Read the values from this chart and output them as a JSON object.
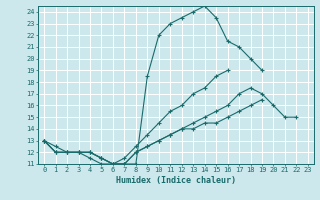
{
  "xlabel": "Humidex (Indice chaleur)",
  "xlim": [
    -0.5,
    23.5
  ],
  "ylim": [
    11,
    24.5
  ],
  "xticks": [
    0,
    1,
    2,
    3,
    4,
    5,
    6,
    7,
    8,
    9,
    10,
    11,
    12,
    13,
    14,
    15,
    16,
    17,
    18,
    19,
    20,
    21,
    22,
    23
  ],
  "yticks": [
    11,
    12,
    13,
    14,
    15,
    16,
    17,
    18,
    19,
    20,
    21,
    22,
    23,
    24
  ],
  "background_color": "#cce8ec",
  "grid_color": "#ffffff",
  "line_color": "#1a6b6b",
  "curve_main": {
    "x": [
      0,
      1,
      2,
      3,
      4,
      5,
      6,
      7,
      8,
      9,
      10,
      11,
      12,
      13,
      14,
      15,
      16,
      17,
      18,
      19
    ],
    "y": [
      13,
      12,
      12,
      12,
      11.5,
      11,
      11,
      11,
      11,
      18.5,
      22,
      23,
      23.5,
      24,
      24.5,
      23.5,
      21.5,
      21,
      20,
      19
    ]
  },
  "curve_line1": {
    "x": [
      0,
      1,
      2,
      3,
      4,
      5,
      6,
      7,
      8,
      9,
      10,
      11,
      12,
      13,
      14,
      15,
      16,
      17,
      18,
      19,
      20,
      21,
      22,
      23
    ],
    "y": [
      13,
      12.5,
      12,
      12,
      12,
      11.5,
      11,
      11.5,
      12.5,
      13.5,
      14.5,
      15.5,
      16,
      17,
      17.5,
      18.5,
      19,
      null,
      null,
      null,
      null,
      null,
      null,
      null
    ]
  },
  "curve_line2": {
    "x": [
      0,
      1,
      2,
      3,
      4,
      5,
      6,
      7,
      8,
      9,
      10,
      11,
      12,
      13,
      14,
      15,
      16,
      17,
      18,
      19,
      20,
      21,
      22,
      23
    ],
    "y": [
      13,
      12,
      12,
      12,
      12,
      11.5,
      11,
      11,
      12,
      12.5,
      13,
      13.5,
      14,
      14.5,
      15,
      15.5,
      16,
      17,
      17.5,
      17,
      16,
      15,
      15,
      null
    ]
  },
  "curve_line3": {
    "x": [
      0,
      1,
      2,
      3,
      4,
      5,
      6,
      7,
      8,
      9,
      10,
      11,
      12,
      13,
      14,
      15,
      16,
      17,
      18,
      19,
      20,
      21,
      22,
      23
    ],
    "y": [
      13,
      12,
      12,
      12,
      12,
      11.5,
      11,
      11,
      12,
      12.5,
      13,
      13.5,
      14,
      14,
      14.5,
      14.5,
      15,
      15.5,
      16,
      16.5,
      null,
      null,
      null,
      null
    ]
  }
}
